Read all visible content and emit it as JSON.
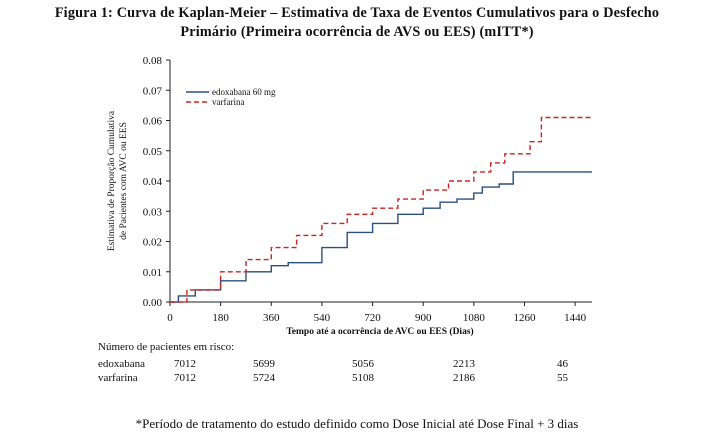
{
  "title_line1": "Figura 1: Curva de Kaplan-Meier – Estimativa de Taxa de Eventos Cumulativos para o Desfecho",
  "title_line2": "Primário (Primeira ocorrência de AVS ou EES)  (mITT*)",
  "chart_data": {
    "type": "line",
    "xlabel": "Tempo até a ocorrência de AVC ou EES (Dias)",
    "ylabel_line1": "Estimativa de Proporção Cumulativa",
    "ylabel_line2": "de Pacientes com AVC ou EES",
    "xlim": [
      0,
      1500
    ],
    "ylim": [
      0,
      0.08
    ],
    "xticks": [
      0,
      180,
      360,
      540,
      720,
      900,
      1080,
      1260,
      1440
    ],
    "xtick_labels": [
      "0",
      "180",
      "360",
      "540",
      "720",
      "900",
      "1080",
      "1260",
      "1440"
    ],
    "yticks": [
      0,
      0.01,
      0.02,
      0.03,
      0.04,
      0.05,
      0.06,
      0.07,
      0.08
    ],
    "ytick_labels": [
      "0.00",
      "0.01",
      "0.02",
      "0.03",
      "0.04",
      "0.05",
      "0.06",
      "0.07",
      "0.08"
    ],
    "legend_position": "top-left",
    "series": [
      {
        "name": "edoxabana 60 mg",
        "color": "#2b4f80",
        "style": "solid",
        "points": [
          [
            0,
            0
          ],
          [
            30,
            0.002
          ],
          [
            90,
            0.004
          ],
          [
            180,
            0.007
          ],
          [
            270,
            0.01
          ],
          [
            360,
            0.012
          ],
          [
            420,
            0.013
          ],
          [
            540,
            0.018
          ],
          [
            630,
            0.023
          ],
          [
            720,
            0.026
          ],
          [
            810,
            0.029
          ],
          [
            900,
            0.031
          ],
          [
            960,
            0.033
          ],
          [
            1020,
            0.034
          ],
          [
            1080,
            0.036
          ],
          [
            1110,
            0.038
          ],
          [
            1170,
            0.039
          ],
          [
            1215,
            0.039
          ],
          [
            1220,
            0.043
          ],
          [
            1500,
            0.043
          ]
        ]
      },
      {
        "name": "varfarina",
        "color": "#cc2222",
        "style": "dashed",
        "points": [
          [
            0,
            0
          ],
          [
            60,
            0.004
          ],
          [
            180,
            0.01
          ],
          [
            270,
            0.014
          ],
          [
            360,
            0.018
          ],
          [
            450,
            0.022
          ],
          [
            540,
            0.026
          ],
          [
            630,
            0.029
          ],
          [
            720,
            0.031
          ],
          [
            810,
            0.034
          ],
          [
            900,
            0.037
          ],
          [
            990,
            0.04
          ],
          [
            1080,
            0.043
          ],
          [
            1140,
            0.046
          ],
          [
            1180,
            0.046
          ],
          [
            1190,
            0.049
          ],
          [
            1270,
            0.049
          ],
          [
            1280,
            0.053
          ],
          [
            1310,
            0.053
          ],
          [
            1320,
            0.061
          ],
          [
            1500,
            0.061
          ]
        ]
      }
    ]
  },
  "risk_table": {
    "heading": "Número de pacientes em risco:",
    "rows": [
      {
        "label": "edoxabana",
        "values": [
          "7012",
          "5699",
          "5056",
          "2213",
          "46"
        ]
      },
      {
        "label": "varfarina",
        "values": [
          "7012",
          "5724",
          "5108",
          "2186",
          "55"
        ]
      }
    ]
  },
  "footnote": "*Período de tratamento do estudo definido como Dose Inicial até Dose Final + 3 dias"
}
